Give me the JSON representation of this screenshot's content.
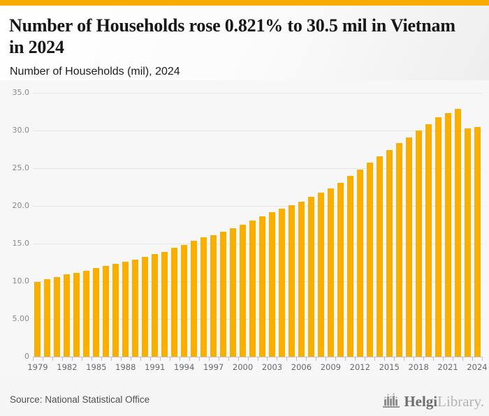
{
  "accent_color": "#F9AC00",
  "header": {
    "title": "Number of Households rose 0.821% to 30.5 mil in Vietnam in 2024",
    "subtitle": "Number of Households (mil), 2024"
  },
  "footer": {
    "source": "Source: National Statistical Office",
    "logo_text_bold": "Helgi",
    "logo_text_light": "Library."
  },
  "chart_data": {
    "type": "bar",
    "title": "Number of Households (mil), 2024",
    "xlabel": "",
    "ylabel": "",
    "ylim": [
      0,
      35
    ],
    "grid": true,
    "legend": "none",
    "bar_color": "#F9AE00",
    "axis_color": "#b7c4d9",
    "grid_color": "#e4e4e4",
    "ytick_values": [
      0,
      5,
      10,
      15,
      20,
      25,
      30,
      35
    ],
    "ytick_labels": [
      "0",
      "5.00",
      "10.0",
      "15.0",
      "20.0",
      "25.0",
      "30.0",
      "35.0"
    ],
    "xtick_labels": [
      "1979",
      "1982",
      "1985",
      "1988",
      "1991",
      "1994",
      "1997",
      "2000",
      "2003",
      "2006",
      "2009",
      "2012",
      "2015",
      "2018",
      "2021",
      "2024"
    ],
    "categories": [
      1979,
      1980,
      1981,
      1982,
      1983,
      1984,
      1985,
      1986,
      1987,
      1988,
      1989,
      1990,
      1991,
      1992,
      1993,
      1994,
      1995,
      1996,
      1997,
      1998,
      1999,
      2000,
      2001,
      2002,
      2003,
      2004,
      2005,
      2006,
      2007,
      2008,
      2009,
      2010,
      2011,
      2012,
      2013,
      2014,
      2015,
      2016,
      2017,
      2018,
      2019,
      2020,
      2021,
      2022,
      2023,
      2024
    ],
    "values": [
      9.9,
      10.3,
      10.6,
      10.9,
      11.1,
      11.4,
      11.8,
      12.0,
      12.3,
      12.6,
      12.9,
      13.2,
      13.6,
      13.9,
      14.4,
      14.8,
      15.4,
      15.8,
      16.1,
      16.6,
      17.0,
      17.5,
      18.1,
      18.6,
      19.2,
      19.6,
      20.1,
      20.6,
      21.2,
      21.8,
      22.3,
      23.1,
      24.0,
      24.8,
      25.7,
      26.6,
      27.4,
      28.3,
      29.1,
      30.0,
      30.8,
      31.8,
      32.3,
      32.9,
      30.25,
      30.5
    ]
  }
}
